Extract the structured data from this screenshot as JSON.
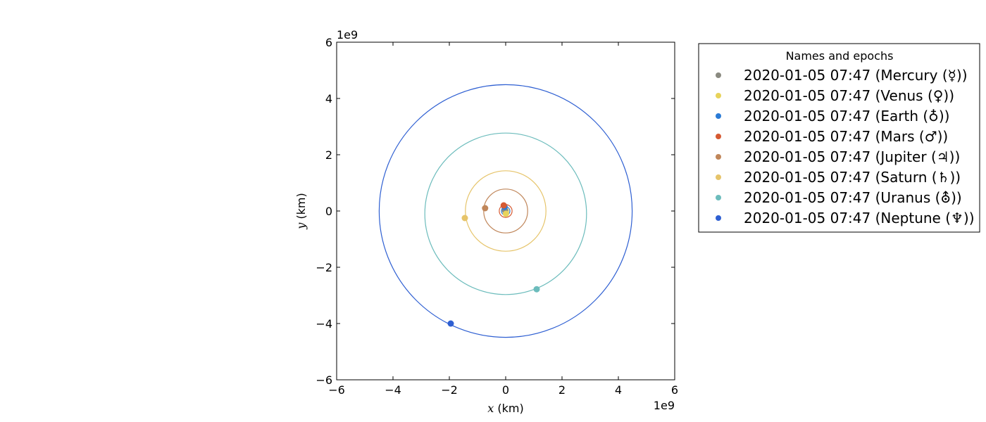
{
  "chart_data": {
    "type": "scatter",
    "xlabel_var": "x",
    "xlabel_unit": " (km)",
    "ylabel_var": "y",
    "ylabel_unit": " (km)",
    "xlim": [
      -6,
      6
    ],
    "ylim": [
      -6,
      6
    ],
    "x_ticks": [
      -6,
      -4,
      -2,
      0,
      2,
      4,
      6
    ],
    "y_ticks": [
      -6,
      -4,
      -2,
      0,
      2,
      4,
      6
    ],
    "x_tick_labels": [
      "−6",
      "−4",
      "−2",
      "0",
      "2",
      "4",
      "6"
    ],
    "y_tick_labels": [
      "−6",
      "−4",
      "−2",
      "0",
      "2",
      "4",
      "6"
    ],
    "x_offset_text": "1e9",
    "y_offset_text": "1e9",
    "grid": false,
    "legend_title": "Names and epochs",
    "legend_position": "outside-right",
    "series": [
      {
        "name": "2020-01-05 07:47 (Mercury (☿))",
        "color": "#8a8a80",
        "x": -0.025,
        "y": 0.025,
        "orbit_center": [
          0.0,
          0.0
        ],
        "orbit_radii": [
          0.058,
          0.058
        ]
      },
      {
        "name": "2020-01-05 07:47 (Venus (♀))",
        "color": "#e8d35a",
        "x": 0.01,
        "y": -0.1,
        "orbit_center": [
          0.0,
          0.0
        ],
        "orbit_radii": [
          0.108,
          0.108
        ]
      },
      {
        "name": "2020-01-05 07:47 (Earth (♁))",
        "color": "#2a7bd6",
        "x": -0.04,
        "y": 0.145,
        "orbit_center": [
          0.0,
          0.0
        ],
        "orbit_radii": [
          0.15,
          0.15
        ]
      },
      {
        "name": "2020-01-05 07:47 (Mars (♂))",
        "color": "#d65a32",
        "x": -0.07,
        "y": 0.2,
        "orbit_center": [
          0.0,
          0.0
        ],
        "orbit_radii": [
          0.228,
          0.228
        ]
      },
      {
        "name": "2020-01-05 07:47 (Jupiter (♃))",
        "color": "#c0865a",
        "x": -0.73,
        "y": 0.1,
        "orbit_center": [
          0.0,
          0.0
        ],
        "orbit_radii": [
          0.78,
          0.78
        ]
      },
      {
        "name": "2020-01-05 07:47 (Saturn (♄))",
        "color": "#e6c46a",
        "x": -1.45,
        "y": -0.25,
        "orbit_center": [
          0.0,
          0.0
        ],
        "orbit_radii": [
          1.43,
          1.43
        ]
      },
      {
        "name": "2020-01-05 07:47 (Uranus (⛢))",
        "color": "#6cbcbc",
        "x": 1.1,
        "y": -2.78,
        "orbit_center": [
          0.0,
          -0.1
        ],
        "orbit_radii": [
          2.87,
          2.87
        ]
      },
      {
        "name": "2020-01-05 07:47 (Neptune (♆))",
        "color": "#2e5fd2",
        "x": -1.95,
        "y": -4.0,
        "orbit_center": [
          0.0,
          0.0
        ],
        "orbit_radii": [
          4.49,
          4.49
        ]
      }
    ]
  }
}
